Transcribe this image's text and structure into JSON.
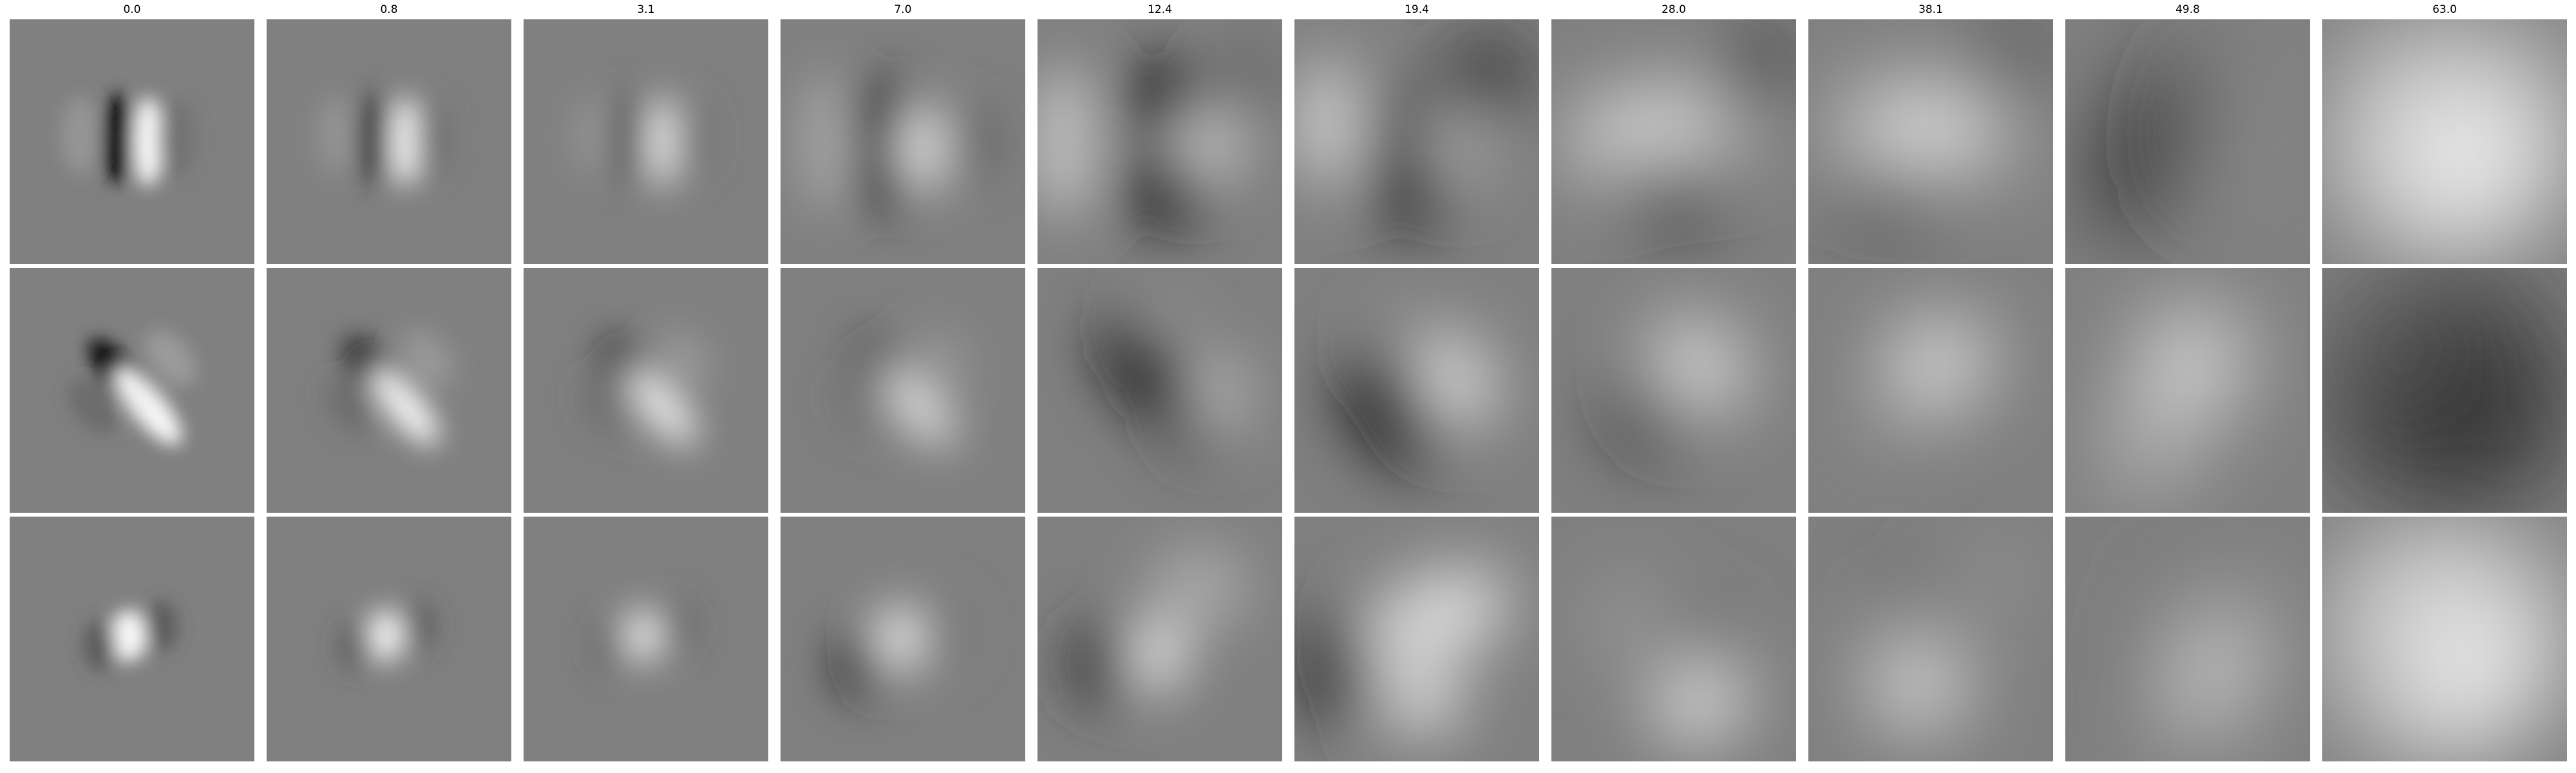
{
  "figure": {
    "column_titles": [
      "0.0",
      "0.8",
      "3.1",
      "7.0",
      "12.4",
      "19.4",
      "28.0",
      "38.1",
      "49.8",
      "63.0"
    ],
    "rows": 3,
    "colormap": "gray",
    "background_gray": "#808080"
  }
}
